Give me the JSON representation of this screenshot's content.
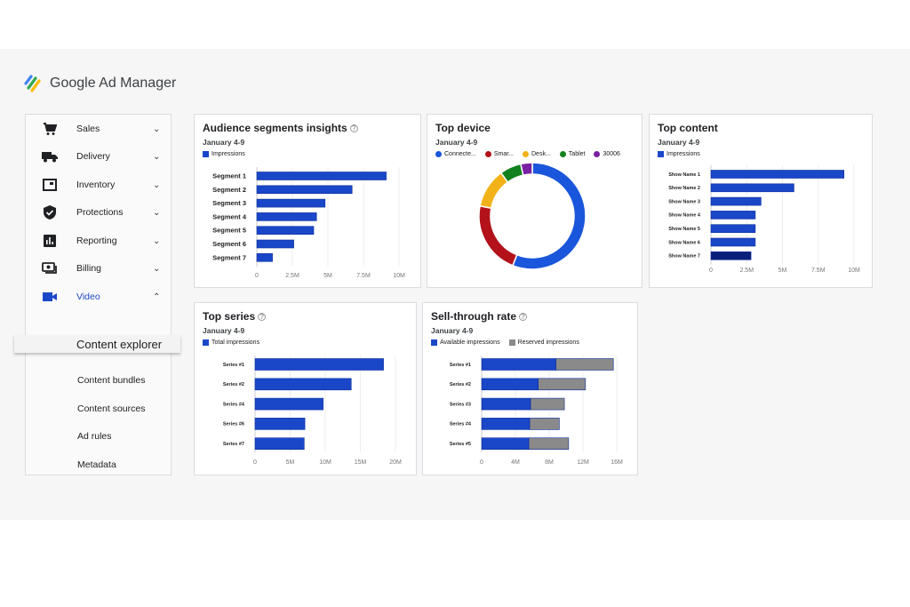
{
  "app": {
    "name": "Google Ad Manager"
  },
  "sidebar": {
    "items": [
      {
        "label": "Sales",
        "icon": "cart-icon",
        "expanded": false
      },
      {
        "label": "Delivery",
        "icon": "truck-icon",
        "expanded": false
      },
      {
        "label": "Inventory",
        "icon": "inventory-icon",
        "expanded": false
      },
      {
        "label": "Protections",
        "icon": "shield-check-icon",
        "expanded": false
      },
      {
        "label": "Reporting",
        "icon": "bar-chart-icon",
        "expanded": false
      },
      {
        "label": "Billing",
        "icon": "money-icon",
        "expanded": false
      },
      {
        "label": "Video",
        "icon": "video-camera-icon",
        "expanded": true
      }
    ],
    "active_color": "#1a47c8",
    "video_subitems": [
      "Content explorer",
      "Content bundles",
      "Content sources",
      "Ad rules",
      "Metadata"
    ],
    "selected_subitem": "Content explorer"
  },
  "cards": {
    "audience": {
      "title": "Audience segments insights",
      "subtitle": "January 4-9"
    },
    "device": {
      "title": "Top device",
      "subtitle": "January 4-9"
    },
    "content": {
      "title": "Top content",
      "subtitle": "January 4-9"
    },
    "series": {
      "title": "Top series",
      "subtitle": "January 4-9"
    },
    "sell": {
      "title": "Sell-through rate",
      "subtitle": "January 4-9"
    }
  },
  "chart_data": [
    {
      "id": "audience",
      "type": "bar",
      "orientation": "horizontal",
      "categories": [
        "Segment 1",
        "Segment 2",
        "Segment 3",
        "Segment 4",
        "Segment 5",
        "Segment 6",
        "Segment 7"
      ],
      "series": [
        {
          "name": "Impressions",
          "values": [
            9.1,
            6.7,
            4.8,
            4.2,
            4.0,
            2.6,
            1.1
          ],
          "color": "#1a47c8"
        }
      ],
      "xlim": [
        0,
        10
      ],
      "xticks": [
        "0",
        "2.5M",
        "5M",
        "7.5M",
        "10M"
      ],
      "grid": true,
      "legend": "top-left",
      "unit": "M"
    },
    {
      "id": "device",
      "type": "pie",
      "donut": true,
      "labels": [
        "Connecte...",
        "Smar...",
        "Desk...",
        "Tablet",
        "30006"
      ],
      "values": [
        56,
        22,
        12,
        6.5,
        3.5
      ],
      "colors": [
        "#1a56db",
        "#b3121b",
        "#f2b21a",
        "#12801f",
        "#7b1fa2"
      ],
      "legend": "top"
    },
    {
      "id": "content",
      "type": "bar",
      "orientation": "horizontal",
      "categories": [
        "Show Name 1",
        "Show Name 2",
        "Show Name 3",
        "Show Name 4",
        "Show Name 5",
        "Show Name 6",
        "Show Name 7"
      ],
      "series": [
        {
          "name": "Impressions",
          "values": [
            9.3,
            5.8,
            3.5,
            3.1,
            3.1,
            3.1,
            2.8
          ],
          "color": "#1a47c8"
        }
      ],
      "highlight_color": "#0a1f7a",
      "highlight_index": 6,
      "xlim": [
        0,
        10
      ],
      "xticks": [
        "0",
        "2.5M",
        "5M",
        "7.5M",
        "10M"
      ],
      "grid": true,
      "legend": "top-left",
      "unit": "M"
    },
    {
      "id": "series",
      "type": "bar",
      "orientation": "horizontal",
      "categories": [
        "Series #1",
        "Series #2",
        "Series #4",
        "Series #6",
        "Series #7"
      ],
      "series": [
        {
          "name": "Total impressions",
          "values": [
            18.3,
            13.7,
            9.7,
            7.1,
            7.0
          ],
          "color": "#1a47c8"
        }
      ],
      "xlim": [
        0,
        20
      ],
      "xticks": [
        "0",
        "5M",
        "10M",
        "15M",
        "20M"
      ],
      "grid": true,
      "legend": "top-left",
      "unit": "M"
    },
    {
      "id": "sell",
      "type": "bar",
      "orientation": "horizontal",
      "stacked": true,
      "categories": [
        "Series #1",
        "Series #2",
        "Series #3",
        "Series #4",
        "Series #5"
      ],
      "series": [
        {
          "name": "Available impressions",
          "values": [
            8.8,
            6.7,
            5.8,
            5.7,
            5.6
          ],
          "color": "#1a47c8"
        },
        {
          "name": "Reserved impressions",
          "values": [
            6.8,
            5.6,
            4.0,
            3.5,
            4.7
          ],
          "color": "#8a8a8a"
        }
      ],
      "xlim": [
        0,
        16
      ],
      "xticks": [
        "0",
        "4M",
        "8M",
        "12M",
        "16M"
      ],
      "grid": true,
      "legend": "top-left",
      "unit": "M"
    }
  ]
}
